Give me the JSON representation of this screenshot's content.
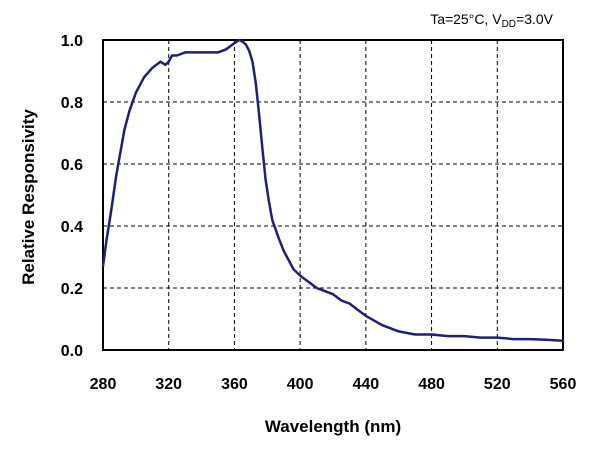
{
  "chart_data": {
    "type": "line",
    "title": "",
    "annotation": {
      "prefix": "Ta=25°C, V",
      "subscript": "DD",
      "suffix": "=3.0V"
    },
    "xlabel": "Wavelength (nm)",
    "ylabel": "Relative Responsivity",
    "xlim": [
      280,
      560
    ],
    "ylim": [
      0,
      1.0
    ],
    "xticks": [
      280,
      320,
      360,
      400,
      440,
      480,
      520,
      560
    ],
    "yticks": [
      0,
      0.2,
      0.4,
      0.6,
      0.8,
      1.0
    ],
    "xtick_labels": [
      "280",
      "320",
      "360",
      "400",
      "440",
      "480",
      "520",
      "560"
    ],
    "ytick_labels": [
      "0.0",
      "0.2",
      "0.4",
      "0.6",
      "0.8",
      "1.0"
    ],
    "grid": true,
    "legend": "none",
    "series": [
      {
        "color": "#1f1f7a",
        "x": [
          280,
          282,
          285,
          288,
          290,
          293,
          296,
          300,
          305,
          310,
          315,
          318,
          320,
          322,
          325,
          330,
          335,
          340,
          345,
          350,
          355,
          360,
          363,
          365,
          367,
          369,
          371,
          373,
          375,
          377,
          379,
          381,
          383,
          385,
          387,
          390,
          393,
          396,
          400,
          405,
          410,
          415,
          420,
          425,
          430,
          435,
          440,
          450,
          460,
          470,
          480,
          490,
          500,
          510,
          520,
          530,
          540,
          550,
          560
        ],
        "y": [
          0.27,
          0.35,
          0.45,
          0.56,
          0.62,
          0.71,
          0.77,
          0.83,
          0.88,
          0.91,
          0.93,
          0.92,
          0.93,
          0.95,
          0.95,
          0.96,
          0.96,
          0.96,
          0.96,
          0.96,
          0.97,
          0.99,
          1.0,
          0.995,
          0.985,
          0.965,
          0.93,
          0.86,
          0.76,
          0.65,
          0.55,
          0.48,
          0.42,
          0.39,
          0.36,
          0.32,
          0.29,
          0.26,
          0.24,
          0.22,
          0.2,
          0.19,
          0.18,
          0.16,
          0.15,
          0.13,
          0.11,
          0.08,
          0.06,
          0.05,
          0.05,
          0.045,
          0.045,
          0.04,
          0.04,
          0.035,
          0.035,
          0.033,
          0.03
        ]
      }
    ]
  }
}
